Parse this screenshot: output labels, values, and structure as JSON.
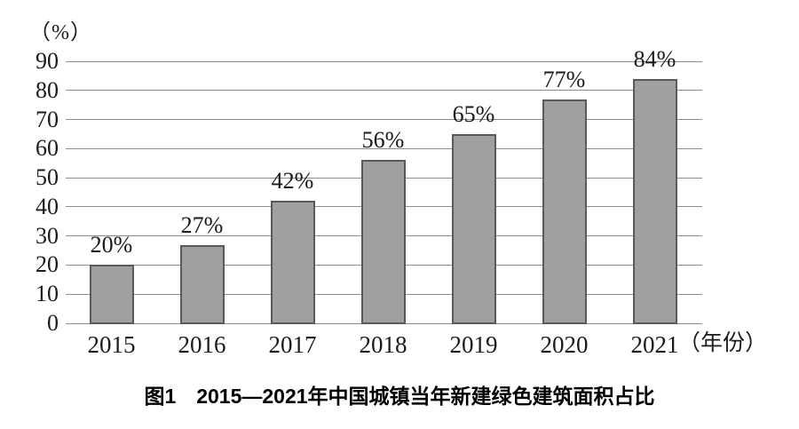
{
  "figure": {
    "caption": "图1　2015—2021年中国城镇当年新建绿色建筑面积占比"
  },
  "chart_data": {
    "type": "bar",
    "title": "图1　2015—2021年中国城镇当年新建绿色建筑面积占比",
    "categories": [
      "2015",
      "2016",
      "2017",
      "2018",
      "2019",
      "2020",
      "2021"
    ],
    "values": [
      20,
      27,
      42,
      56,
      65,
      77,
      84
    ],
    "bar_labels": [
      "20%",
      "27%",
      "42%",
      "56%",
      "65%",
      "77%",
      "84%"
    ],
    "ylabel": "（%）",
    "xlabel": "（年份）",
    "ylim": [
      0,
      90
    ],
    "yticks": [
      0,
      10,
      20,
      30,
      40,
      50,
      60,
      70,
      80,
      90
    ],
    "grid": "horizontal-only",
    "legend": "none",
    "colors": {
      "bar_fill": "#a0a0a0",
      "bar_border": "#595959",
      "gridline": "#8c8c8c",
      "text": "#1c1a1a",
      "background": "#ffffff"
    }
  }
}
